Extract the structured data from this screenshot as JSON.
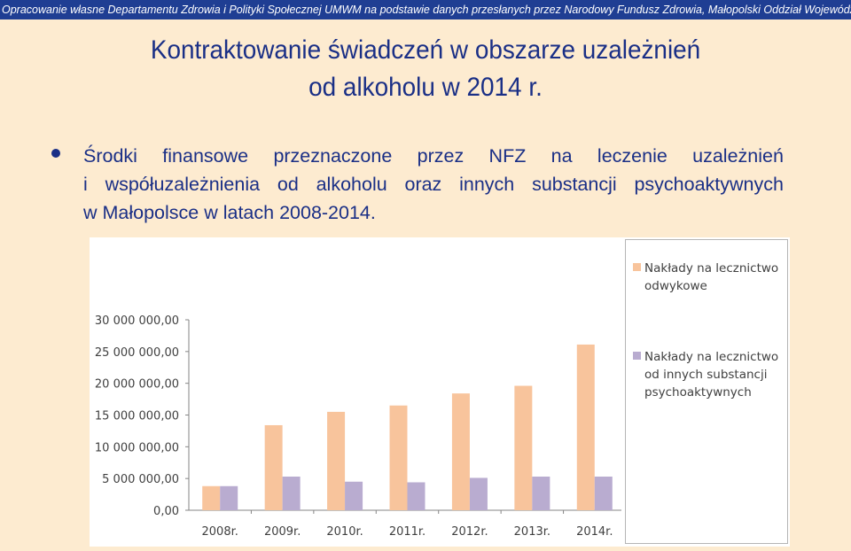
{
  "banner": "Opracowanie własne Departamentu Zdrowia i Polityki Społecznej UMWM na podstawie danych przesłanych przez Narodowy Fundusz Zdrowia, Małopolski Oddział Wojewódzki w Krakowie",
  "title_line1": "Kontraktowanie świadczeń w obszarze uzależnień",
  "title_line2": "od alkoholu w 2014 r.",
  "bullet_text": {
    "line1_words": [
      "Środki",
      "finansowe",
      "przeznaczone",
      "przez",
      "NFZ",
      "na",
      "leczenie",
      "uzależnień"
    ],
    "line2_words": [
      "i",
      "współuzależnienia",
      "od",
      "alkoholu",
      "oraz",
      "innych",
      "substancji",
      "psychoaktywnych"
    ],
    "line3": "w Małopolsce w latach 2008-2014."
  },
  "colors": {
    "background": "#fdebd0",
    "banner": "#1f3e93",
    "text": "#1a2f86",
    "series_alcohol": "#f8c49c",
    "series_other": "#b9acd0"
  },
  "chart_data": {
    "type": "bar",
    "categories": [
      "2008r.",
      "2009r.",
      "2010r.",
      "2011r.",
      "2012r.",
      "2013r.",
      "2014r."
    ],
    "series": [
      {
        "name": "Nakłady na lecznictwo odwykowe",
        "values": [
          3800000,
          13400000,
          15500000,
          16500000,
          18400000,
          19600000,
          26100000
        ]
      },
      {
        "name": "Nakłady na lecznictwo od innych substancji psychoaktywnych",
        "values": [
          3800000,
          5300000,
          4500000,
          4400000,
          5100000,
          5300000,
          5300000
        ]
      }
    ],
    "yticks": [
      "0,00",
      "5 000 000,00",
      "10 000 000,00",
      "15 000 000,00",
      "20 000 000,00",
      "25 000 000,00",
      "30 000 000,00"
    ],
    "ylim": [
      0,
      30000000
    ],
    "grid": false,
    "legend_position": "right"
  }
}
